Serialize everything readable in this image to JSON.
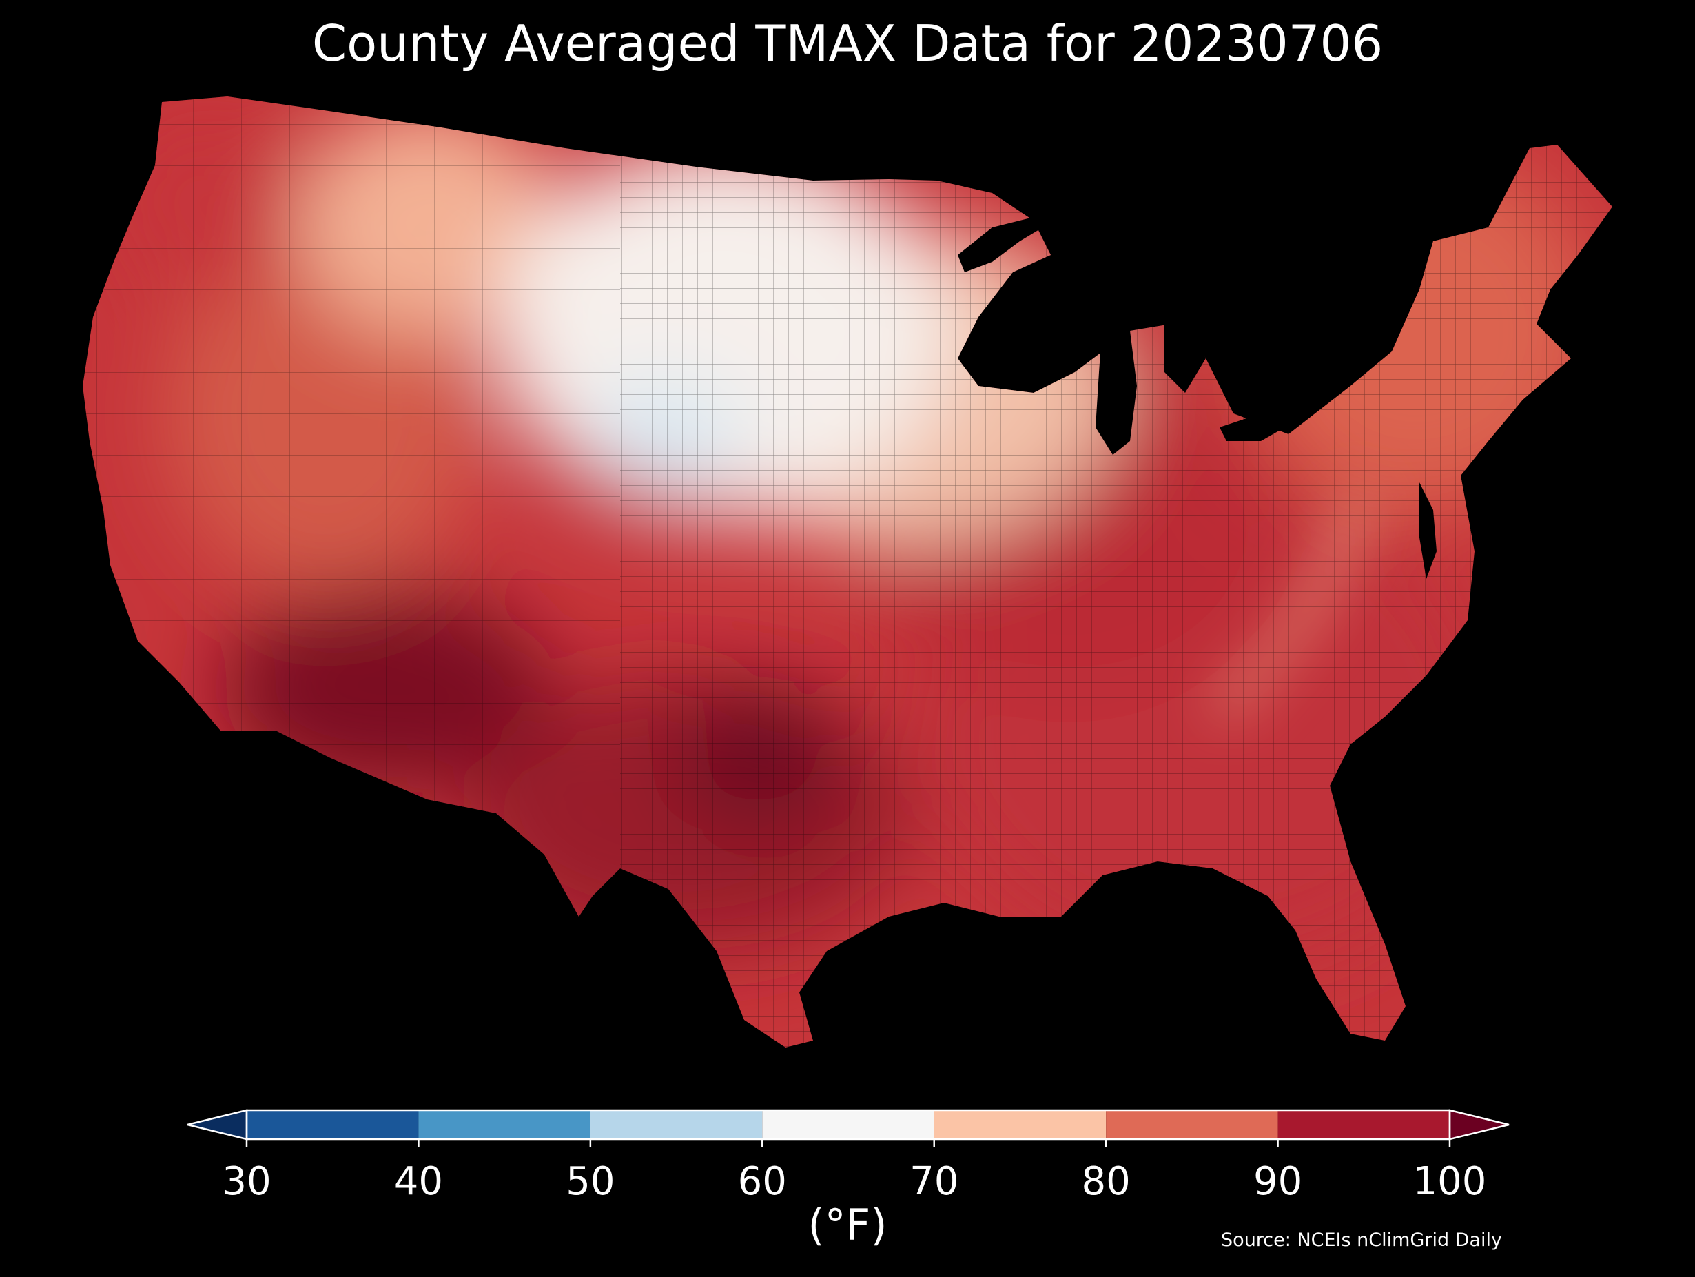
{
  "title": "County Averaged TMAX Data for 20230706",
  "colorbar": {
    "label": "(°F)",
    "ticks": [
      "30",
      "40",
      "50",
      "60",
      "70",
      "80",
      "90",
      "100"
    ],
    "bins": [
      {
        "from": 30,
        "to": 40,
        "color": "#1a5799"
      },
      {
        "from": 40,
        "to": 50,
        "color": "#4896c6"
      },
      {
        "from": 50,
        "to": 60,
        "color": "#b6d6ea"
      },
      {
        "from": 60,
        "to": 70,
        "color": "#f6f6f6"
      },
      {
        "from": 70,
        "to": 80,
        "color": "#fbc4a6"
      },
      {
        "from": 80,
        "to": 90,
        "color": "#df6a56"
      },
      {
        "from": 90,
        "to": 100,
        "color": "#a8182e"
      }
    ],
    "under_color": "#0a2d5f",
    "over_color": "#6b0021",
    "extend": "both"
  },
  "source": "Source: NCEIs nClimGrid Daily",
  "regions": [
    {
      "id": "pacific-northwest",
      "color": "#c6353a"
    },
    {
      "id": "northern-rockies",
      "color": "#f3b194"
    },
    {
      "id": "northern-plains",
      "color": "#f6f0ec"
    },
    {
      "id": "colorado-high-country",
      "color": "#d9e8f2"
    },
    {
      "id": "great-basin",
      "color": "#d35a4a"
    },
    {
      "id": "desert-southwest",
      "color": "#7b0a22"
    },
    {
      "id": "southern-plains",
      "color": "#9a1a2c"
    },
    {
      "id": "upper-midwest",
      "color": "#f2c0a8"
    },
    {
      "id": "midwest",
      "color": "#bb2c34"
    },
    {
      "id": "southeast",
      "color": "#c1303a"
    },
    {
      "id": "appalachians",
      "color": "#f0a283"
    },
    {
      "id": "northeast",
      "color": "#dc634f"
    },
    {
      "id": "central-texas",
      "color": "#6e0b21"
    }
  ]
}
